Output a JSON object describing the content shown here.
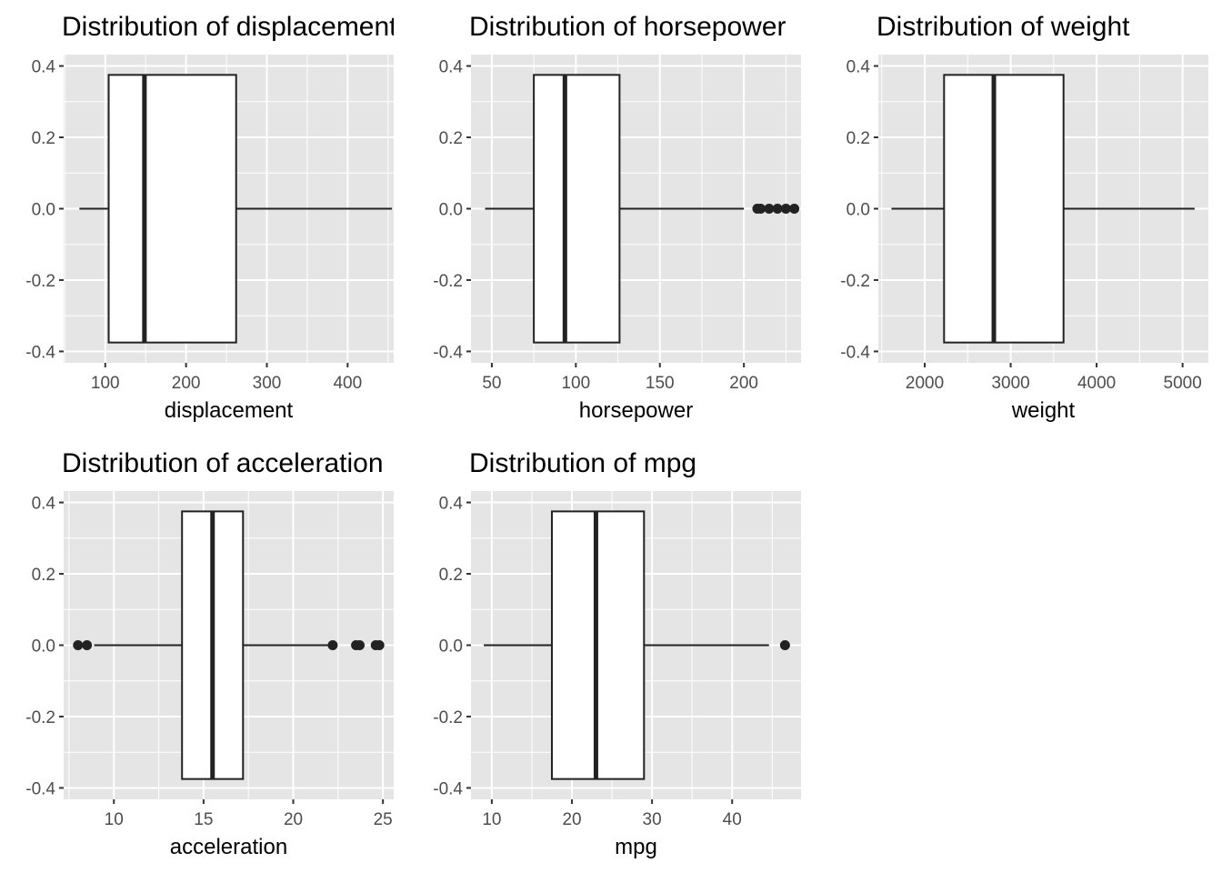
{
  "chart_data": [
    {
      "type": "boxplot",
      "title": "Distribution of displacement",
      "xlabel": "displacement",
      "xlim": [
        48.5,
        457
      ],
      "ylim": [
        -0.4,
        0.4
      ],
      "xticks": [
        100,
        200,
        300,
        400
      ],
      "yticks": [
        -0.4,
        -0.2,
        0.0,
        0.2,
        0.4
      ],
      "ytick_labels": [
        "-0.4",
        "-0.2",
        "0.0",
        "0.2",
        "0.4"
      ],
      "box": {
        "whisker_low": 68,
        "q1": 104.25,
        "median": 148.5,
        "q3": 262,
        "whisker_high": 455
      },
      "outliers": [],
      "grid": true
    },
    {
      "type": "boxplot",
      "title": "Distribution of horsepower",
      "xlabel": "horsepower",
      "xlim": [
        37.6,
        234
      ],
      "ylim": [
        -0.4,
        0.4
      ],
      "xticks": [
        50,
        100,
        150,
        200
      ],
      "yticks": [
        -0.4,
        -0.2,
        0.0,
        0.2,
        0.4
      ],
      "ytick_labels": [
        "-0.4",
        "-0.2",
        "0.0",
        "0.2",
        "0.4"
      ],
      "box": {
        "whisker_low": 46,
        "q1": 75,
        "median": 93.5,
        "q3": 126,
        "whisker_high": 200
      },
      "outliers": [
        208,
        210,
        215,
        220,
        225,
        230
      ],
      "grid": true
    },
    {
      "type": "boxplot",
      "title": "Distribution of weight",
      "xlabel": "weight",
      "xlim": [
        1460,
        5300
      ],
      "ylim": [
        -0.4,
        0.4
      ],
      "xticks": [
        2000,
        3000,
        4000,
        5000
      ],
      "yticks": [
        -0.4,
        -0.2,
        0.0,
        0.2,
        0.4
      ],
      "ytick_labels": [
        "-0.4",
        "-0.2",
        "0.0",
        "0.2",
        "0.4"
      ],
      "box": {
        "whisker_low": 1613,
        "q1": 2225,
        "median": 2804,
        "q3": 3615,
        "whisker_high": 5140
      },
      "outliers": [],
      "grid": true
    },
    {
      "type": "boxplot",
      "title": "Distribution of acceleration",
      "xlabel": "acceleration",
      "xlim": [
        7.2,
        25.6
      ],
      "ylim": [
        -0.4,
        0.4
      ],
      "xticks": [
        10,
        15,
        20,
        25
      ],
      "yticks": [
        -0.4,
        -0.2,
        0.0,
        0.2,
        0.4
      ],
      "ytick_labels": [
        "-0.4",
        "-0.2",
        "0.0",
        "0.2",
        "0.4"
      ],
      "box": {
        "whisker_low": 8.9,
        "q1": 13.8,
        "median": 15.5,
        "q3": 17.2,
        "whisker_high": 22.1
      },
      "outliers": [
        8.0,
        8.5,
        22.2,
        23.5,
        23.7,
        24.6,
        24.8
      ],
      "grid": true
    },
    {
      "type": "boxplot",
      "title": "Distribution of mpg",
      "xlabel": "mpg",
      "xlim": [
        7.4,
        48.6
      ],
      "ylim": [
        -0.4,
        0.4
      ],
      "xticks": [
        10,
        20,
        30,
        40
      ],
      "yticks": [
        -0.4,
        -0.2,
        0.0,
        0.2,
        0.4
      ],
      "ytick_labels": [
        "-0.4",
        "-0.2",
        "0.0",
        "0.2",
        "0.4"
      ],
      "box": {
        "whisker_low": 9,
        "q1": 17.5,
        "median": 23,
        "q3": 29,
        "whisker_high": 44.6
      },
      "outliers": [
        46.6
      ],
      "grid": true
    }
  ],
  "colors": {
    "panel_background": "#e5e5e5",
    "grid_line": "#ffffff",
    "box_fill": "#ffffff",
    "box_stroke": "#222222",
    "tick_text": "#4d4d4d",
    "axis_tick": "#333333",
    "text": "#000000"
  }
}
